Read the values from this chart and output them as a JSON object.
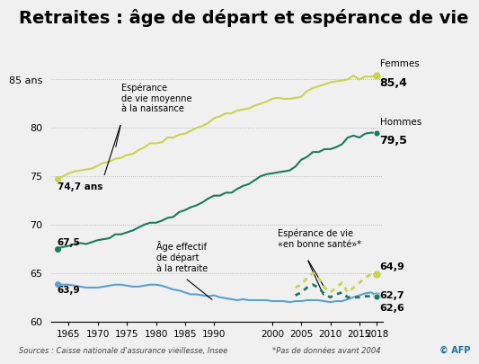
{
  "title": "Retraites : âge de départ et espérance de vie",
  "title_fontsize": 14,
  "background_color": "#f0f0f0",
  "plot_bg_color": "#f0f0f0",
  "source_text": "Sources : Caisse nationale d'assurance vieillesse, Insee",
  "note_text": "*Pas de données avant 2004",
  "afp_text": "© AFP",
  "years_life_expectancy": [
    1963,
    1964,
    1965,
    1966,
    1967,
    1968,
    1969,
    1970,
    1971,
    1972,
    1973,
    1974,
    1975,
    1976,
    1977,
    1978,
    1979,
    1980,
    1981,
    1982,
    1983,
    1984,
    1985,
    1986,
    1987,
    1988,
    1989,
    1990,
    1991,
    1992,
    1993,
    1994,
    1995,
    1996,
    1997,
    1998,
    1999,
    2000,
    2001,
    2002,
    2003,
    2004,
    2005,
    2006,
    2007,
    2008,
    2009,
    2010,
    2011,
    2012,
    2013,
    2014,
    2015,
    2016,
    2017,
    2018
  ],
  "femmes_life": [
    74.7,
    75.0,
    75.3,
    75.5,
    75.6,
    75.7,
    75.8,
    76.1,
    76.4,
    76.5,
    76.8,
    76.9,
    77.2,
    77.3,
    77.7,
    78.0,
    78.4,
    78.4,
    78.5,
    79.0,
    79.0,
    79.3,
    79.4,
    79.7,
    80.0,
    80.2,
    80.5,
    81.0,
    81.2,
    81.5,
    81.5,
    81.8,
    81.9,
    82.0,
    82.3,
    82.5,
    82.7,
    83.0,
    83.1,
    83.0,
    83.0,
    83.1,
    83.2,
    83.8,
    84.1,
    84.3,
    84.5,
    84.7,
    84.8,
    84.9,
    85.0,
    85.4,
    85.0,
    85.3,
    85.3,
    85.4
  ],
  "hommes_life": [
    67.5,
    67.7,
    67.8,
    68.0,
    68.1,
    68.0,
    68.2,
    68.4,
    68.5,
    68.6,
    69.0,
    69.0,
    69.2,
    69.4,
    69.7,
    70.0,
    70.2,
    70.2,
    70.4,
    70.7,
    70.8,
    71.3,
    71.5,
    71.8,
    72.0,
    72.3,
    72.7,
    73.0,
    73.0,
    73.3,
    73.3,
    73.7,
    74.0,
    74.2,
    74.6,
    75.0,
    75.2,
    75.3,
    75.4,
    75.5,
    75.6,
    76.0,
    76.7,
    77.0,
    77.5,
    77.5,
    77.8,
    77.8,
    78.0,
    78.3,
    79.0,
    79.2,
    79.0,
    79.4,
    79.5,
    79.5
  ],
  "years_retirement": [
    1963,
    1964,
    1965,
    1966,
    1967,
    1968,
    1969,
    1970,
    1971,
    1972,
    1973,
    1974,
    1975,
    1976,
    1977,
    1978,
    1979,
    1980,
    1981,
    1982,
    1983,
    1984,
    1985,
    1986,
    1987,
    1988,
    1989,
    1990,
    1991,
    1992,
    1993,
    1994,
    1995,
    1996,
    1997,
    1998,
    1999,
    2000,
    2001,
    2002,
    2003,
    2004,
    2005,
    2006,
    2007,
    2008,
    2009,
    2010,
    2011,
    2012,
    2013,
    2014,
    2015,
    2016,
    2017,
    2018
  ],
  "retirement_age": [
    63.9,
    63.8,
    63.8,
    63.7,
    63.6,
    63.5,
    63.5,
    63.5,
    63.6,
    63.7,
    63.8,
    63.8,
    63.7,
    63.6,
    63.6,
    63.7,
    63.8,
    63.8,
    63.7,
    63.5,
    63.3,
    63.2,
    63.0,
    62.8,
    62.8,
    62.7,
    62.6,
    62.7,
    62.5,
    62.4,
    62.3,
    62.2,
    62.3,
    62.2,
    62.2,
    62.2,
    62.2,
    62.1,
    62.1,
    62.1,
    62.0,
    62.1,
    62.1,
    62.2,
    62.2,
    62.2,
    62.1,
    62.0,
    62.1,
    62.1,
    62.3,
    62.5,
    62.7,
    62.9,
    63.0,
    62.7
  ],
  "years_healthy": [
    2004,
    2005,
    2006,
    2007,
    2008,
    2009,
    2010,
    2011,
    2012,
    2013,
    2014,
    2015,
    2016,
    2017,
    2018
  ],
  "femmes_healthy": [
    63.5,
    63.8,
    64.5,
    65.0,
    64.5,
    63.5,
    63.0,
    63.5,
    64.0,
    63.0,
    63.5,
    64.0,
    64.5,
    64.9,
    64.9
  ],
  "hommes_healthy": [
    62.7,
    63.0,
    63.5,
    63.8,
    63.5,
    62.8,
    62.5,
    62.8,
    63.0,
    62.5,
    62.5,
    62.5,
    62.6,
    62.6,
    62.6
  ],
  "color_femmes": "#c8d44e",
  "color_hommes": "#1a7a5e",
  "color_retirement": "#5ba0d0",
  "color_healthy_femmes": "#c8d44e",
  "color_healthy_hommes": "#1a7a5e",
  "ylim": [
    60,
    87
  ],
  "xlim": [
    1962,
    2019
  ],
  "yticks": [
    60,
    65,
    70,
    75,
    80,
    85
  ],
  "xticks": [
    1965,
    1970,
    1975,
    1980,
    1985,
    1990,
    2000,
    2005,
    2010,
    2015,
    2018
  ],
  "xtick_labels": [
    "1965",
    "1970",
    "1975",
    "1980",
    "1985",
    "1990",
    "2000",
    "2005",
    "2010",
    "2015",
    "2018"
  ]
}
